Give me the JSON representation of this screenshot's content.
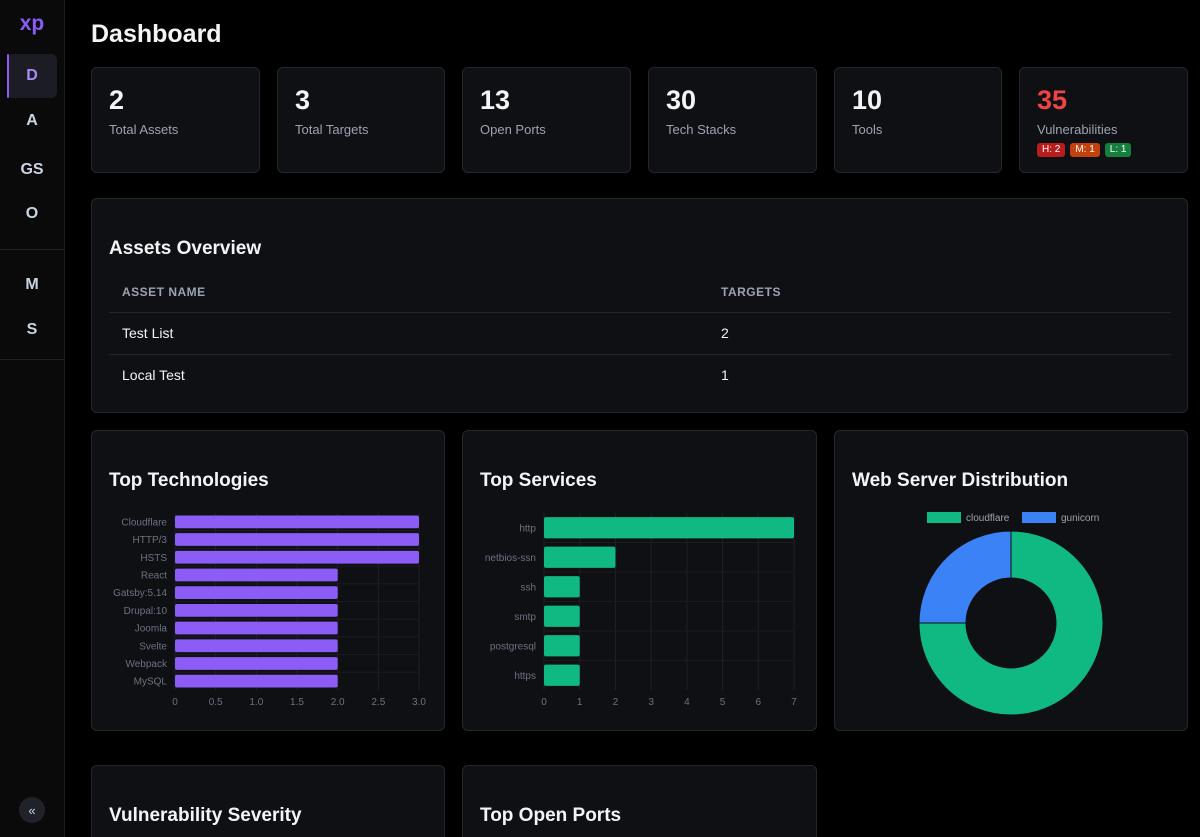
{
  "sidebar": {
    "logo": "xp",
    "items": [
      {
        "label": "D",
        "active": true
      },
      {
        "label": "A"
      },
      {
        "label": "GS"
      },
      {
        "label": "O"
      },
      {
        "label": "M"
      },
      {
        "label": "S"
      }
    ],
    "collapse_glyph": "«"
  },
  "page": {
    "title": "Dashboard"
  },
  "stats": [
    {
      "value": "2",
      "label": "Total Assets"
    },
    {
      "value": "3",
      "label": "Total Targets"
    },
    {
      "value": "13",
      "label": "Open Ports"
    },
    {
      "value": "30",
      "label": "Tech Stacks"
    },
    {
      "value": "10",
      "label": "Tools"
    },
    {
      "value": "35",
      "label": "Vulnerabilities"
    }
  ],
  "severity_badges": {
    "high": "H: 2",
    "medium": "M: 1",
    "low": "L: 1"
  },
  "assets": {
    "title": "Assets Overview",
    "columns": [
      "ASSET NAME",
      "TARGETS"
    ],
    "rows": [
      {
        "name": "Test List",
        "targets": "2"
      },
      {
        "name": "Local Test",
        "targets": "1"
      }
    ]
  },
  "sections": {
    "top_technologies": "Top Technologies",
    "top_services": "Top Services",
    "web_server": "Web Server Distribution",
    "vuln_severity": "Vulnerability Severity",
    "top_ports": "Top Open Ports"
  },
  "colors": {
    "accent": "#8b5cf6",
    "green": "#10b981",
    "blue": "#3b82f6",
    "danger": "#ef4444"
  },
  "chart_data": [
    {
      "type": "bar",
      "orientation": "horizontal",
      "title": "Top Technologies",
      "categories": [
        "Cloudflare",
        "HTTP/3",
        "HSTS",
        "React",
        "Gatsby:5.14",
        "Drupal:10",
        "Joomla",
        "Svelte",
        "Webpack",
        "MySQL"
      ],
      "values": [
        3,
        3,
        3,
        2,
        2,
        2,
        2,
        2,
        2,
        2
      ],
      "xlim": [
        0,
        3
      ],
      "ticks": [
        "0",
        "0.5",
        "1.0",
        "1.5",
        "2.0",
        "2.5",
        "3.0"
      ],
      "color": "#8b5cf6"
    },
    {
      "type": "bar",
      "orientation": "horizontal",
      "title": "Top Services",
      "categories": [
        "http",
        "netbios-ssn",
        "ssh",
        "smtp",
        "postgresql",
        "https"
      ],
      "values": [
        7,
        2,
        1,
        1,
        1,
        1
      ],
      "xlim": [
        0,
        7
      ],
      "ticks": [
        "0",
        "1",
        "2",
        "3",
        "4",
        "5",
        "6",
        "7"
      ],
      "color": "#10b981"
    },
    {
      "type": "pie",
      "variant": "doughnut",
      "title": "Web Server Distribution",
      "labels": [
        "cloudflare",
        "gunicorn"
      ],
      "values": [
        3,
        1
      ],
      "colors": [
        "#10b981",
        "#3b82f6"
      ],
      "legend": "top"
    }
  ]
}
